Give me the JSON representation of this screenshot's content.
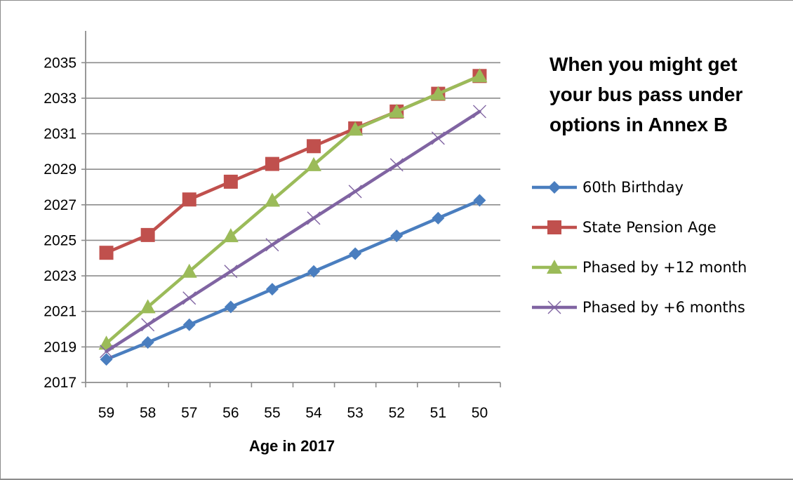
{
  "chart_data": {
    "type": "line",
    "title_lines": [
      "When you might get",
      "your bus pass under",
      "options in Annex B"
    ],
    "xlabel": "Age in 2017",
    "ylabel": "",
    "categories": [
      "59",
      "58",
      "57",
      "56",
      "55",
      "54",
      "53",
      "52",
      "51",
      "50"
    ],
    "y_ticks": [
      2017,
      2019,
      2021,
      2023,
      2025,
      2027,
      2029,
      2031,
      2033,
      2035
    ],
    "ylim": [
      2017,
      2036
    ],
    "grid": "horizontal",
    "legend_position": "right",
    "series": [
      {
        "name": "60th Birthday",
        "color": "#4a7ebf",
        "marker": "diamond",
        "values": [
          2018.3,
          2019.25,
          2020.25,
          2021.25,
          2022.25,
          2023.25,
          2024.25,
          2025.25,
          2026.25,
          2027.25
        ]
      },
      {
        "name": "State Pension Age",
        "color": "#c0504d",
        "marker": "square",
        "values": [
          2024.3,
          2025.3,
          2027.3,
          2028.3,
          2029.3,
          2030.3,
          2031.3,
          2032.25,
          2033.25,
          2034.25
        ]
      },
      {
        "name": "Phased by +12 month",
        "color": "#9bbb59",
        "marker": "triangle",
        "values": [
          2019.2,
          2021.25,
          2023.25,
          2025.25,
          2027.25,
          2029.25,
          2031.25,
          2032.25,
          2033.25,
          2034.25
        ]
      },
      {
        "name": "Phased by +6 months",
        "color": "#8064a2",
        "marker": "x",
        "values": [
          2018.75,
          2020.25,
          2021.75,
          2023.25,
          2024.75,
          2026.25,
          2027.75,
          2029.25,
          2030.75,
          2032.25
        ]
      }
    ]
  }
}
